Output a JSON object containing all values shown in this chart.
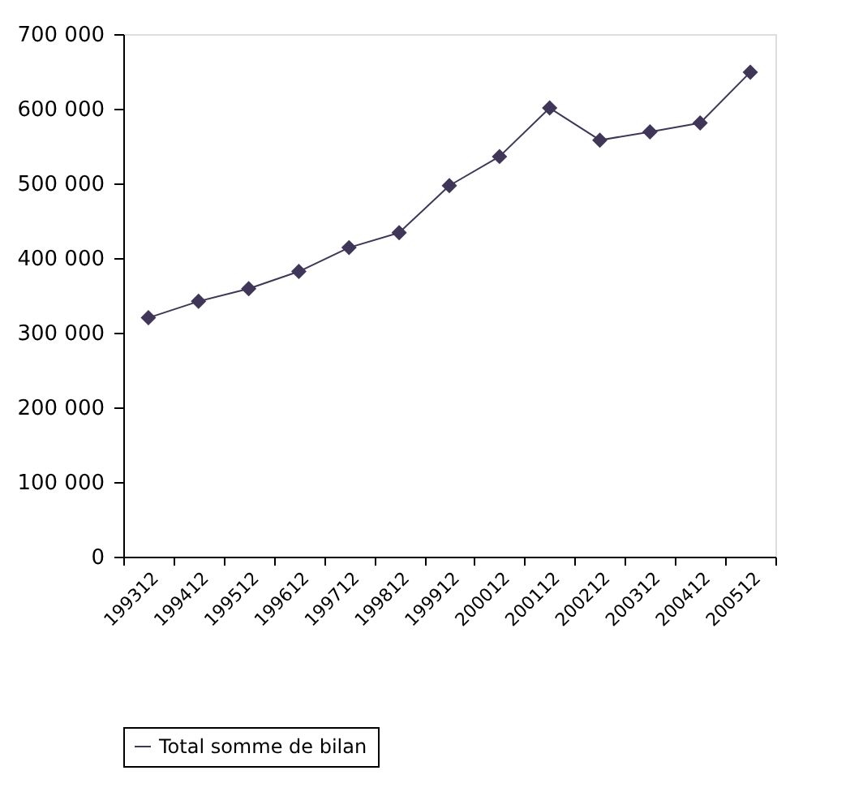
{
  "chart_data": {
    "type": "line",
    "categories": [
      "199312",
      "199412",
      "199512",
      "199612",
      "199712",
      "199812",
      "199912",
      "200012",
      "200112",
      "200212",
      "200312",
      "200412",
      "200512"
    ],
    "series": [
      {
        "name": "Total somme de bilan",
        "color": "#3f3658",
        "values": [
          320000,
          342000,
          359000,
          382000,
          414000,
          434000,
          497000,
          536000,
          601000,
          558000,
          569000,
          581000,
          649000
        ]
      }
    ],
    "ylim": [
      0,
      700000
    ],
    "yticks": [
      0,
      {
        "value": 100000,
        "label": "100 000"
      },
      {
        "value": 200000,
        "label": "200 000"
      },
      {
        "value": 300000,
        "label": "300 000"
      },
      {
        "value": 400000,
        "label": "400 000"
      },
      {
        "value": 500000,
        "label": "500 000"
      },
      {
        "value": 600000,
        "label": "600 000"
      },
      {
        "value": 700000,
        "label": "700 000"
      }
    ],
    "grid": false,
    "legend": "bottom",
    "marker": "diamond",
    "line_style": "solid"
  }
}
